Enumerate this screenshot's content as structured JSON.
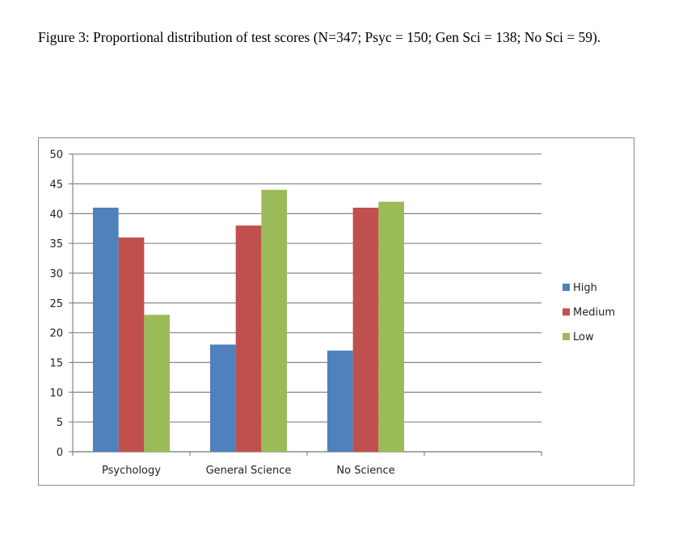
{
  "caption": "Figure 3: Proportional distribution of test scores (N=347; Psyc = 150; Gen Sci = 138; No Sci = 59).",
  "chart_data": {
    "type": "bar",
    "title": "",
    "xlabel": "",
    "ylabel": "",
    "categories": [
      "Psychology",
      "General Science",
      "No Science"
    ],
    "series": [
      {
        "name": "High",
        "values": [
          41,
          18,
          17
        ],
        "color": "#4f81bd"
      },
      {
        "name": "Medium",
        "values": [
          36,
          38,
          41
        ],
        "color": "#c0504d"
      },
      {
        "name": "Low",
        "values": [
          23,
          44,
          42
        ],
        "color": "#9bbb59"
      }
    ],
    "ylim": [
      0,
      50
    ],
    "yticks": [
      0,
      5,
      10,
      15,
      20,
      25,
      30,
      35,
      40,
      45,
      50
    ],
    "grid": true,
    "legend": "right"
  }
}
